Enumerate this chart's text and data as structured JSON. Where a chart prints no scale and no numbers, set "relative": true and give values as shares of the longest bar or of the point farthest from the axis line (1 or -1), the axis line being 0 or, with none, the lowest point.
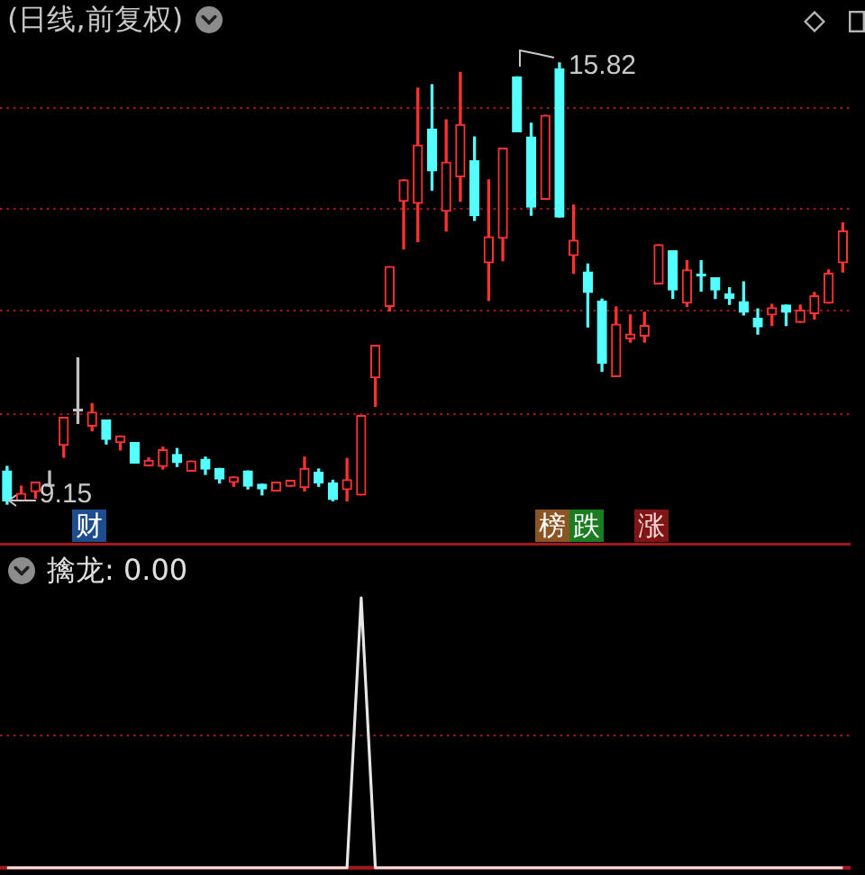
{
  "chart_data": [
    {
      "type": "candlestick",
      "title": "(日线,前复权)",
      "categories": [
        null,
        null,
        null,
        null,
        null,
        null,
        null,
        null,
        null,
        null,
        null,
        null,
        null,
        null,
        null,
        null,
        null,
        null,
        null,
        null,
        null,
        null,
        null,
        null,
        null,
        null,
        null,
        null,
        null,
        null,
        null,
        null,
        null,
        null,
        null,
        null,
        null,
        null,
        null,
        null,
        null,
        null,
        null,
        null,
        null,
        null,
        null,
        null,
        null,
        null,
        null,
        null,
        null,
        null,
        null,
        null,
        null,
        null,
        null,
        null
      ],
      "ohlc": [
        [
          9.65,
          9.72,
          9.15,
          9.2
        ],
        [
          9.2,
          9.42,
          9.2,
          9.31
        ],
        [
          9.34,
          9.48,
          9.24,
          9.48
        ],
        [
          9.42,
          9.65,
          9.42,
          9.42
        ],
        [
          10.04,
          10.46,
          9.86,
          10.46
        ],
        [
          10.56,
          11.36,
          10.37,
          10.56
        ],
        [
          10.33,
          10.67,
          10.26,
          10.54
        ],
        [
          10.42,
          10.42,
          10.06,
          10.13
        ],
        [
          10.08,
          10.18,
          9.97,
          10.18
        ],
        [
          10.08,
          10.08,
          9.77,
          9.77
        ],
        [
          9.73,
          9.85,
          9.73,
          9.81
        ],
        [
          9.72,
          10.01,
          9.68,
          9.97
        ],
        [
          9.9,
          9.99,
          9.72,
          9.78
        ],
        [
          9.65,
          9.8,
          9.65,
          9.8
        ],
        [
          9.83,
          9.86,
          9.6,
          9.68
        ],
        [
          9.69,
          9.69,
          9.47,
          9.53
        ],
        [
          9.48,
          9.56,
          9.42,
          9.56
        ],
        [
          9.65,
          9.65,
          9.38,
          9.42
        ],
        [
          9.45,
          9.45,
          9.29,
          9.38
        ],
        [
          9.35,
          9.48,
          9.35,
          9.48
        ],
        [
          9.42,
          9.51,
          9.42,
          9.51
        ],
        [
          9.4,
          9.86,
          9.35,
          9.69
        ],
        [
          9.63,
          9.68,
          9.42,
          9.47
        ],
        [
          9.47,
          9.51,
          9.2,
          9.22
        ],
        [
          9.37,
          9.84,
          9.2,
          9.52
        ],
        [
          9.29,
          10.49,
          9.29,
          10.49
        ],
        [
          11.06,
          11.55,
          10.63,
          11.55
        ],
        [
          12.14,
          12.74,
          12.07,
          12.74
        ],
        [
          13.73,
          14.05,
          13.01,
          14.05
        ],
        [
          13.7,
          15.44,
          13.12,
          14.58
        ],
        [
          14.82,
          15.49,
          13.9,
          14.19
        ],
        [
          13.58,
          14.96,
          13.28,
          14.32
        ],
        [
          14.1,
          15.68,
          13.73,
          14.89
        ],
        [
          14.34,
          14.7,
          13.44,
          13.51
        ],
        [
          12.8,
          14.05,
          12.23,
          13.19
        ],
        [
          13.17,
          14.53,
          12.83,
          14.53
        ],
        [
          15.61,
          15.61,
          14.78,
          14.78
        ],
        [
          14.7,
          14.91,
          13.52,
          13.64
        ],
        [
          13.76,
          15.03,
          13.76,
          15.03
        ],
        [
          15.73,
          15.82,
          13.49,
          13.49
        ],
        [
          12.91,
          13.67,
          12.64,
          13.14
        ],
        [
          12.66,
          12.78,
          11.83,
          12.35
        ],
        [
          12.22,
          12.25,
          11.16,
          11.28
        ],
        [
          11.08,
          12.13,
          11.08,
          11.87
        ],
        [
          11.65,
          12.01,
          11.6,
          11.72
        ],
        [
          11.69,
          12.05,
          11.6,
          11.85
        ],
        [
          12.48,
          13.07,
          12.48,
          13.07
        ],
        [
          12.98,
          12.98,
          12.26,
          12.39
        ],
        [
          12.19,
          12.83,
          12.14,
          12.69
        ],
        [
          12.63,
          12.83,
          12.37,
          12.6
        ],
        [
          12.57,
          12.57,
          12.26,
          12.39
        ],
        [
          12.33,
          12.42,
          12.17,
          12.26
        ],
        [
          12.21,
          12.51,
          12.01,
          12.05
        ],
        [
          11.96,
          12.1,
          11.72,
          11.83
        ],
        [
          12.01,
          12.17,
          11.85,
          12.12
        ],
        [
          12.16,
          12.16,
          11.85,
          12.05
        ],
        [
          11.9,
          12.16,
          11.9,
          12.08
        ],
        [
          12.03,
          12.35,
          11.95,
          12.3
        ],
        [
          12.19,
          12.69,
          12.19,
          12.64
        ],
        [
          12.8,
          13.4,
          12.66,
          13.28
        ]
      ],
      "colors": [
        "#54ffff",
        "#ff3232",
        "#ff3232",
        "#c0c0c0",
        "#ff3232",
        "#c0c0c0",
        "#ff3232",
        "#54ffff",
        "#ff3232",
        "#54ffff",
        "#ff3232",
        "#ff3232",
        "#54ffff",
        "#ff3232",
        "#54ffff",
        "#54ffff",
        "#ff3232",
        "#54ffff",
        "#54ffff",
        "#ff3232",
        "#ff3232",
        "#ff3232",
        "#54ffff",
        "#54ffff",
        "#ff3232",
        "#ff3232",
        "#ff3232",
        "#ff3232",
        "#ff3232",
        "#ff3232",
        "#54ffff",
        "#ff3232",
        "#ff3232",
        "#54ffff",
        "#ff3232",
        "#ff3232",
        "#54ffff",
        "#54ffff",
        "#ff3232",
        "#54ffff",
        "#ff3232",
        "#54ffff",
        "#54ffff",
        "#ff3232",
        "#ff3232",
        "#ff3232",
        "#ff3232",
        "#54ffff",
        "#ff3232",
        "#54ffff",
        "#54ffff",
        "#54ffff",
        "#54ffff",
        "#54ffff",
        "#ff3232",
        "#54ffff",
        "#ff3232",
        "#ff3232",
        "#ff3232",
        "#ff3232"
      ],
      "yticks": [
        {
          "value": 10.51,
          "label": null
        },
        {
          "value": 12.07,
          "label": null
        },
        {
          "value": 13.61,
          "label": null
        },
        {
          "value": 15.14,
          "label": null
        }
      ],
      "grid": "y",
      "annotations": [
        "15.82",
        "9.15",
        "财",
        "榜",
        "跌",
        "涨"
      ]
    },
    {
      "type": "line",
      "title": "擒龙: 0.00",
      "categories": [
        null,
        null,
        null,
        null,
        null,
        null,
        null,
        null,
        null,
        null,
        null,
        null,
        null,
        null,
        null,
        null,
        null,
        null,
        null,
        null,
        null,
        null,
        null,
        null,
        null,
        null,
        null,
        null,
        null,
        null,
        null,
        null,
        null,
        null,
        null,
        null,
        null,
        null,
        null,
        null,
        null,
        null,
        null,
        null,
        null,
        null,
        null,
        null,
        null,
        null,
        null,
        null,
        null,
        null,
        null,
        null,
        null,
        null,
        null,
        null
      ],
      "values": [
        0,
        0,
        0,
        0,
        0,
        0,
        0,
        0,
        0,
        0,
        0,
        0,
        0,
        0,
        0,
        0,
        0,
        0,
        0,
        0,
        0,
        0,
        0,
        0,
        0,
        1,
        0,
        0,
        0,
        0,
        0,
        0,
        0,
        0,
        0,
        0,
        0,
        0,
        0,
        0,
        0,
        0,
        0,
        0,
        0,
        0,
        0,
        0,
        0,
        0,
        0,
        0,
        0,
        0,
        0,
        0,
        0,
        0,
        0,
        0
      ],
      "color": "#e6e6e6",
      "relative": true,
      "ref_lines": [
        {
          "axis": "y",
          "value": 0.49,
          "color": "#a3161a",
          "line_style": "dotted"
        }
      ]
    }
  ]
}
